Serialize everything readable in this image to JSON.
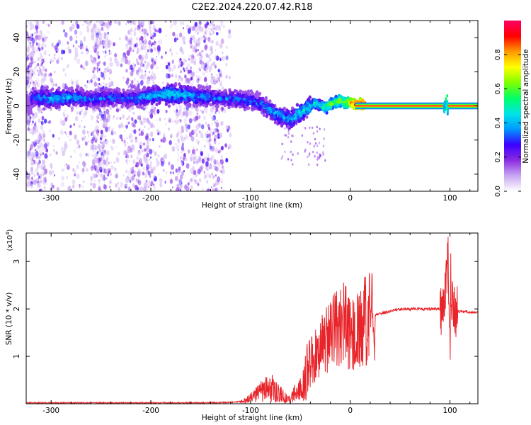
{
  "title": "C2E2.2024.220.07.42.R18",
  "chart_data": [
    {
      "type": "heatmap",
      "xlabel": "Height of straight line (km)",
      "ylabel": "Frequency (Hz)",
      "xlim": [
        -325,
        128
      ],
      "ylim": [
        -50,
        50
      ],
      "xticks": [
        -300,
        -200,
        -100,
        0,
        100
      ],
      "yticks": [
        -40,
        -20,
        0,
        20,
        40
      ],
      "colorbar": {
        "label": "Normalized spectral amplitude",
        "range": [
          0,
          1
        ],
        "ticks": [
          0.0,
          0.2,
          0.4,
          0.6,
          0.8
        ],
        "tick_labels": [
          "0.0",
          "0.2",
          "0.4",
          "0.6",
          "0.8"
        ],
        "colors": [
          "#ffffff",
          "#c8a6f2",
          "#8a2be2",
          "#3b00ff",
          "#0099ff",
          "#00e5e5",
          "#00ff66",
          "#7fff00",
          "#ffff00",
          "#ff9900",
          "#ff0000",
          "#ff0066"
        ]
      },
      "ridge": {
        "x": [
          -320,
          -300,
          -280,
          -260,
          -240,
          -220,
          -200,
          -180,
          -160,
          -140,
          -120,
          -100,
          -90,
          -80,
          -70,
          -60,
          -50,
          -45,
          -40,
          -35,
          -30,
          -25,
          -20,
          -15,
          -10,
          -5,
          0,
          5,
          10,
          20,
          40,
          60,
          80,
          95,
          100,
          128
        ],
        "y": [
          5,
          4,
          5,
          4,
          5,
          4,
          6,
          7,
          6,
          5,
          4,
          3,
          1,
          -3,
          -6,
          -8,
          -4,
          -2,
          0,
          2,
          0,
          -1,
          1,
          2,
          3,
          2,
          2,
          1,
          1,
          0,
          0,
          0,
          0,
          0,
          0,
          0
        ],
        "amplitude": [
          0.35,
          0.4,
          0.4,
          0.35,
          0.35,
          0.35,
          0.4,
          0.45,
          0.4,
          0.35,
          0.35,
          0.35,
          0.35,
          0.4,
          0.4,
          0.4,
          0.45,
          0.45,
          0.45,
          0.5,
          0.5,
          0.55,
          0.6,
          0.6,
          0.65,
          0.65,
          0.8,
          0.9,
          0.95,
          0.95,
          0.95,
          0.95,
          0.95,
          0.95,
          0.95,
          0.95
        ]
      }
    },
    {
      "type": "line",
      "xlabel": "Height of straight line (km)",
      "ylabel": "SNR (10 * v/v)",
      "scale_label": "(x10",
      "scale_exp": "4",
      "scale_close": ")",
      "xlim": [
        -325,
        128
      ],
      "ylim": [
        0,
        3.6
      ],
      "xticks": [
        -300,
        -200,
        -100,
        0,
        100
      ],
      "yticks": [
        1,
        2,
        3
      ],
      "series": [
        {
          "color": "#e8242a",
          "x": [
            -325,
            -300,
            -250,
            -200,
            -150,
            -120,
            -105,
            -95,
            -90,
            -85,
            -80,
            -75,
            -70,
            -65,
            -60,
            -55,
            -50,
            -45,
            -40,
            -35,
            -30,
            -25,
            -20,
            -15,
            -10,
            -5,
            0,
            5,
            10,
            15,
            20,
            30,
            40,
            50,
            60,
            70,
            80,
            90,
            95,
            98,
            100,
            102,
            105,
            110,
            128
          ],
          "y": [
            0.02,
            0.02,
            0.02,
            0.02,
            0.02,
            0.03,
            0.06,
            0.18,
            0.25,
            0.3,
            0.35,
            0.28,
            0.2,
            0.12,
            0.08,
            0.25,
            0.3,
            0.55,
            0.9,
            1.0,
            1.15,
            1.3,
            1.4,
            1.55,
            1.65,
            1.7,
            1.4,
            1.55,
            1.6,
            1.75,
            1.85,
            1.9,
            1.95,
            2.0,
            2.0,
            2.0,
            2.0,
            2.0,
            2.2,
            3.3,
            1.3,
            2.1,
            1.95,
            1.95,
            1.92
          ]
        }
      ]
    }
  ]
}
